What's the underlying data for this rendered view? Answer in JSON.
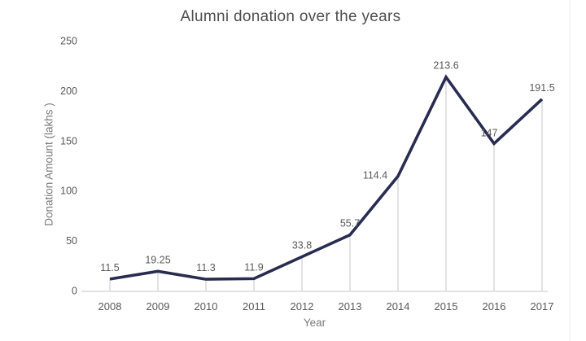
{
  "page": {
    "background": "#ffffff"
  },
  "chart_data": {
    "type": "line",
    "title": "Alumni donation over the years",
    "xlabel": "Year",
    "ylabel": "Donation Amount (lakhs )",
    "categories": [
      "2008",
      "2009",
      "2010",
      "2011",
      "2012",
      "2013",
      "2014",
      "2015",
      "2016",
      "2017"
    ],
    "series": [
      {
        "name": "Donation Amount",
        "values": [
          11.5,
          19.25,
          11.3,
          11.9,
          33.8,
          55.7,
          114.4,
          213.6,
          147,
          191.5
        ]
      }
    ],
    "point_labels": [
      "11.5",
      "19.25",
      "11.3",
      "11.9",
      "33.8",
      "55.7",
      "114.4",
      "213.6",
      "147",
      "191.5"
    ],
    "ylim": [
      0,
      250
    ],
    "yticks": [
      0,
      50,
      100,
      150,
      200,
      250
    ],
    "grid": false,
    "drop_lines": true,
    "markers": false,
    "legend_position": "none",
    "colors": {
      "line": "#272c50",
      "drop_line": "#c9c9c9",
      "axis": "#d9d9d9",
      "text": "#595959",
      "title_text": "#4f4f4f"
    },
    "label_offsets": {
      "6": {
        "dx": -28,
        "dy": 3
      },
      "8": {
        "dx": -6,
        "dy": -9
      }
    }
  }
}
